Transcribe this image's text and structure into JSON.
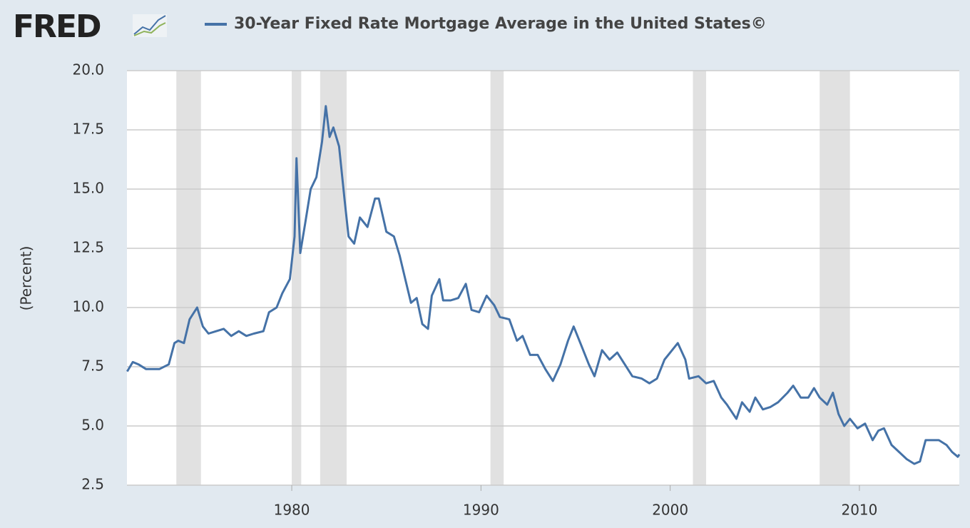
{
  "chart_data": {
    "type": "line",
    "logo": "FRED",
    "ylabel": "(Percent)",
    "x": [
      1971.3,
      1971.6,
      1971.9,
      1972.3,
      1972.7,
      1973.0,
      1973.5,
      1973.8,
      1974.0,
      1974.3,
      1974.6,
      1975.0,
      1975.3,
      1975.6,
      1976.0,
      1976.4,
      1976.8,
      1977.2,
      1977.6,
      1978.0,
      1978.5,
      1978.8,
      1979.2,
      1979.5,
      1979.9,
      1980.15,
      1980.25,
      1980.45,
      1980.7,
      1981.0,
      1981.3,
      1981.6,
      1981.8,
      1982.0,
      1982.2,
      1982.5,
      1982.8,
      1983.0,
      1983.3,
      1983.6,
      1984.0,
      1984.4,
      1984.6,
      1985.0,
      1985.4,
      1985.7,
      1986.0,
      1986.3,
      1986.6,
      1986.9,
      1987.2,
      1987.4,
      1987.8,
      1988.0,
      1988.4,
      1988.8,
      1989.2,
      1989.5,
      1989.9,
      1990.3,
      1990.7,
      1991.0,
      1991.5,
      1991.9,
      1992.2,
      1992.6,
      1993.0,
      1993.4,
      1993.8,
      1994.2,
      1994.6,
      1994.9,
      1995.3,
      1995.7,
      1996.0,
      1996.4,
      1996.8,
      1997.2,
      1997.6,
      1998.0,
      1998.5,
      1998.9,
      1999.3,
      1999.7,
      2000.1,
      2000.4,
      2000.8,
      2001.0,
      2001.5,
      2001.9,
      2002.3,
      2002.7,
      2003.0,
      2003.5,
      2003.8,
      2004.2,
      2004.5,
      2004.9,
      2005.3,
      2005.7,
      2006.2,
      2006.5,
      2006.9,
      2007.3,
      2007.6,
      2007.9,
      2008.3,
      2008.6,
      2008.9,
      2009.2,
      2009.5,
      2009.9,
      2010.3,
      2010.7,
      2011.0,
      2011.3,
      2011.7,
      2012.1,
      2012.5,
      2012.9,
      2013.2,
      2013.5,
      2013.8,
      2014.2,
      2014.6,
      2014.9,
      2015.2,
      2015.28
    ],
    "series": [
      {
        "name": "30-Year Fixed Rate Mortgage Average in the United States©",
        "color": "#4572a7",
        "values": [
          7.3,
          7.7,
          7.6,
          7.4,
          7.4,
          7.4,
          7.6,
          8.5,
          8.6,
          8.5,
          9.5,
          10.0,
          9.2,
          8.9,
          9.0,
          9.1,
          8.8,
          9.0,
          8.8,
          8.9,
          9.0,
          9.8,
          10.0,
          10.6,
          11.2,
          13.0,
          16.3,
          12.3,
          13.5,
          15.0,
          15.5,
          17.0,
          18.5,
          17.2,
          17.6,
          16.8,
          14.5,
          13.0,
          12.7,
          13.8,
          13.4,
          14.6,
          14.6,
          13.2,
          13.0,
          12.2,
          11.2,
          10.2,
          10.4,
          9.3,
          9.1,
          10.5,
          11.2,
          10.3,
          10.3,
          10.4,
          11.0,
          9.9,
          9.8,
          10.5,
          10.1,
          9.6,
          9.5,
          8.6,
          8.8,
          8.0,
          8.0,
          7.4,
          6.9,
          7.6,
          8.6,
          9.2,
          8.4,
          7.6,
          7.1,
          8.2,
          7.8,
          8.1,
          7.6,
          7.1,
          7.0,
          6.8,
          7.0,
          7.8,
          8.2,
          8.5,
          7.8,
          7.0,
          7.1,
          6.8,
          6.9,
          6.2,
          5.9,
          5.3,
          6.0,
          5.6,
          6.2,
          5.7,
          5.8,
          6.0,
          6.4,
          6.7,
          6.2,
          6.2,
          6.6,
          6.2,
          5.9,
          6.4,
          5.5,
          5.0,
          5.3,
          4.9,
          5.1,
          4.4,
          4.8,
          4.9,
          4.2,
          3.9,
          3.6,
          3.4,
          3.5,
          4.4,
          4.4,
          4.4,
          4.2,
          3.9,
          3.7,
          3.8
        ]
      }
    ],
    "shaded_ranges": [
      [
        1973.9,
        1975.2
      ],
      [
        1980.0,
        1980.5
      ],
      [
        1981.5,
        1982.9
      ],
      [
        1990.5,
        1991.2
      ],
      [
        2001.2,
        2001.9
      ],
      [
        2007.9,
        2009.5
      ]
    ],
    "shaded_color": "#e1e1e1",
    "xlim": [
      1971.29,
      2015.28
    ],
    "xticks": [
      1980,
      1990,
      2000,
      2010
    ],
    "ylim": [
      2.5,
      20
    ],
    "yticks": [
      {
        "value": 2.5,
        "label": "2.5"
      },
      {
        "value": 5,
        "label": "5.0"
      },
      {
        "value": 7.5,
        "label": "7.5"
      },
      {
        "value": 10,
        "label": "10.0"
      },
      {
        "value": 12.5,
        "label": "12.5"
      },
      {
        "value": 15,
        "label": "15.0"
      },
      {
        "value": 17.5,
        "label": "17.5"
      },
      {
        "value": 20,
        "label": "20.0"
      }
    ],
    "grid": true
  }
}
